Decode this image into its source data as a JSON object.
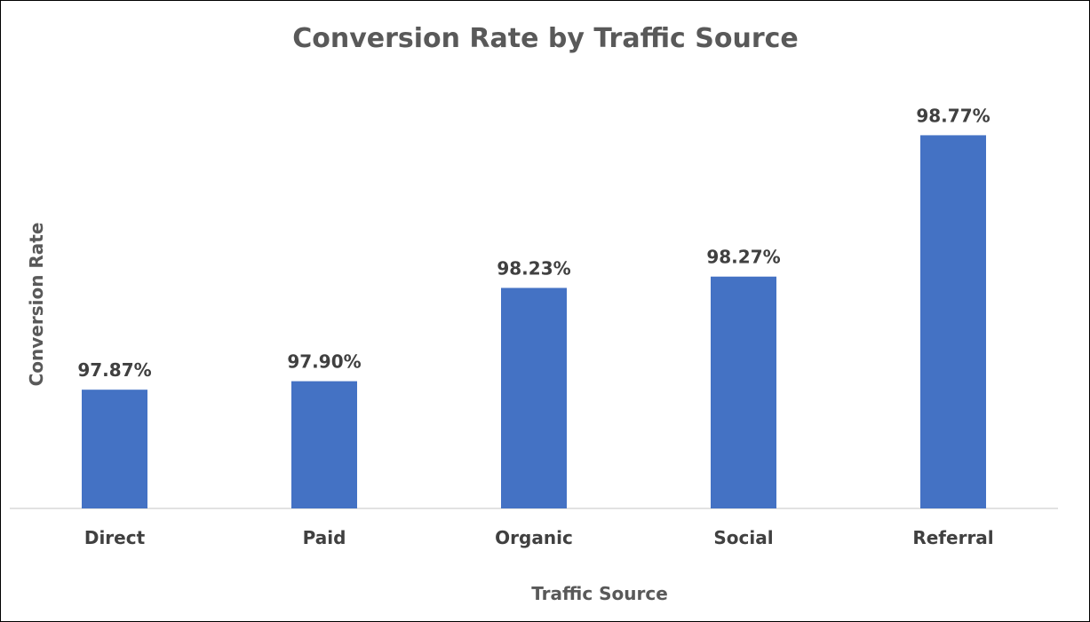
{
  "chart_data": {
    "type": "bar",
    "title": "Conversion Rate by Traffic Source",
    "xlabel": "Traffic Source",
    "ylabel": "Conversion Rate",
    "categories": [
      "Direct",
      "Paid",
      "Organic",
      "Social",
      "Referral"
    ],
    "values": [
      97.87,
      97.9,
      98.23,
      98.27,
      98.77
    ],
    "value_labels": [
      "97.87%",
      "97.90%",
      "98.23%",
      "98.27%",
      "98.77%"
    ],
    "ylim": [
      97.45,
      98.9
    ],
    "grid": false,
    "legend": "none",
    "colors": {
      "bar": "#4472C4",
      "axis": "#D9D9D9"
    }
  }
}
